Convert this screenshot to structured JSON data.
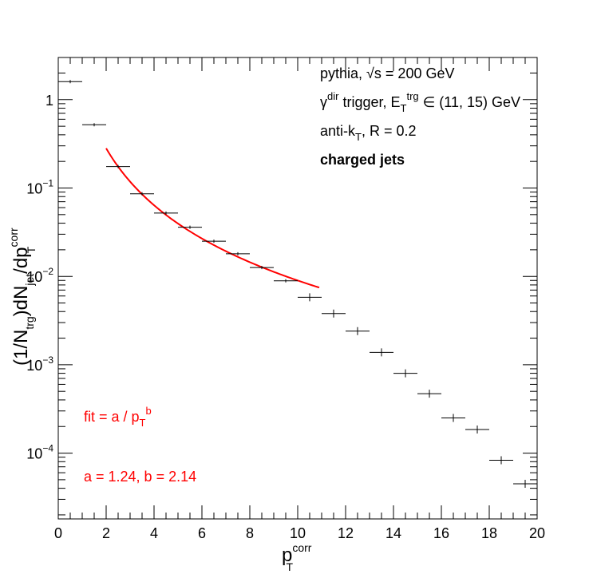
{
  "chart_data": {
    "type": "scatter",
    "log_y": true,
    "xlim": [
      0,
      20
    ],
    "ylim": [
      1.8e-05,
      3.0
    ],
    "x_ticks": [
      0,
      2,
      4,
      6,
      8,
      10,
      12,
      14,
      16,
      18,
      20
    ],
    "x_tick_labels": [
      "0",
      "2",
      "4",
      "6",
      "8",
      "10",
      "12",
      "14",
      "16",
      "18",
      "20"
    ],
    "y_ticks": [
      0.0001,
      0.001,
      0.01,
      0.1,
      1
    ],
    "y_tick_labels": [
      {
        "base": "10",
        "exp": "−4"
      },
      {
        "base": "10",
        "exp": "−3"
      },
      {
        "base": "10",
        "exp": "−2"
      },
      {
        "base": "10",
        "exp": "−1"
      },
      {
        "base": "1",
        "exp": ""
      }
    ],
    "xlabel": {
      "main": "p",
      "sub": "T",
      "sup": "corr"
    },
    "ylabel": {
      "p1": "(1/N",
      "sub1": "trg",
      "p2": ")dN",
      "sub2": "jet",
      "p3": "/dp",
      "sub3": "T",
      "sup3": "corr"
    },
    "series": [
      {
        "kind": "histogram",
        "color": "#000000",
        "points": [
          {
            "x0": 0,
            "x1": 1,
            "y": 1.6
          },
          {
            "x0": 1,
            "x1": 2,
            "y": 0.52
          },
          {
            "x0": 2,
            "x1": 3,
            "y": 0.175
          },
          {
            "x0": 3,
            "x1": 4,
            "y": 0.086
          },
          {
            "x0": 4,
            "x1": 5,
            "y": 0.052
          },
          {
            "x0": 5,
            "x1": 6,
            "y": 0.036
          },
          {
            "x0": 6,
            "x1": 7,
            "y": 0.025
          },
          {
            "x0": 7,
            "x1": 8,
            "y": 0.018
          },
          {
            "x0": 8,
            "x1": 9,
            "y": 0.0126
          },
          {
            "x0": 9,
            "x1": 10,
            "y": 0.0089
          },
          {
            "x0": 10,
            "x1": 11,
            "y": 0.0058
          },
          {
            "x0": 11,
            "x1": 12,
            "y": 0.0038
          },
          {
            "x0": 12,
            "x1": 13,
            "y": 0.0024
          },
          {
            "x0": 13,
            "x1": 14,
            "y": 0.00138
          },
          {
            "x0": 14,
            "x1": 15,
            "y": 0.0008
          },
          {
            "x0": 15,
            "x1": 16,
            "y": 0.00047
          },
          {
            "x0": 16,
            "x1": 17,
            "y": 0.00025
          },
          {
            "x0": 17,
            "x1": 18,
            "y": 0.000185
          },
          {
            "x0": 18,
            "x1": 19,
            "y": 8.3e-05
          },
          {
            "x0": 19,
            "x1": 20,
            "y": 4.5e-05
          }
        ]
      },
      {
        "kind": "fit",
        "color": "#ff0000",
        "formula": "a / pT^b",
        "a": 1.24,
        "b": 2.14,
        "xrange": [
          2,
          10.9
        ]
      }
    ],
    "annotations": [
      {
        "name": "pythia-text",
        "parts": [
          {
            "t": "pythia, √s = 200 GeV"
          }
        ]
      },
      {
        "name": "trigger-text",
        "parts": [
          {
            "t": "γ"
          },
          {
            "t": "dir",
            "sup": true
          },
          {
            "t": " trigger, E"
          },
          {
            "t": "T",
            "sub": true
          },
          {
            "t": "trg",
            "sup": true
          },
          {
            "t": " ∈ (11, 15) GeV"
          }
        ]
      },
      {
        "name": "antikt-text",
        "parts": [
          {
            "t": "anti-k"
          },
          {
            "t": "T",
            "sub": true
          },
          {
            "t": ", R = 0.2"
          }
        ]
      },
      {
        "name": "charged-jets-text",
        "parts": [
          {
            "t": "charged jets",
            "bold": true
          }
        ]
      },
      {
        "name": "fit-formula-text",
        "red": true,
        "parts": [
          {
            "t": "fit = a / p"
          },
          {
            "t": "T",
            "sub": true
          },
          {
            "t": "b",
            "sup": true
          }
        ]
      },
      {
        "name": "fit-params-text",
        "red": true,
        "parts": [
          {
            "t": "a = 1.24, b = 2.14"
          }
        ]
      }
    ]
  }
}
